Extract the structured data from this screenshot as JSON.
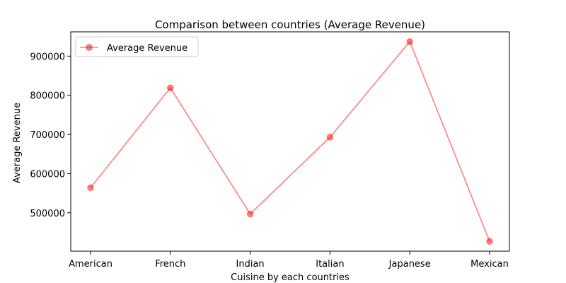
{
  "chart_data": {
    "type": "line",
    "title": "Comparison between countries (Average Revenue)",
    "xlabel": "Cuisine by each countries",
    "ylabel": "Average Revenue",
    "categories": [
      "American",
      "French",
      "Indian",
      "Italian",
      "Japanese",
      "Mexican"
    ],
    "series": [
      {
        "name": "Average Revenue",
        "values": [
          564000,
          819000,
          497000,
          693000,
          937000,
          427000
        ],
        "color": "#ff0000",
        "opacity": 0.5,
        "marker": "circle"
      }
    ],
    "ylim": [
      402000,
      962000
    ],
    "yticks": [
      500000,
      600000,
      700000,
      800000,
      900000
    ],
    "ytick_labels": [
      "500000",
      "600000",
      "700000",
      "800000",
      "900000"
    ],
    "grid": false,
    "legend": {
      "placement": "top-left",
      "entries": [
        "Average Revenue"
      ]
    }
  }
}
